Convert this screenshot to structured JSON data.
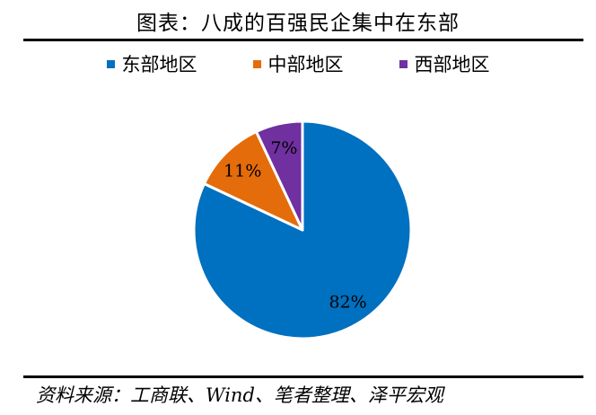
{
  "chart_data": {
    "type": "pie",
    "title": "图表：八成的百强民企集中在东部",
    "categories": [
      "东部地区",
      "中部地区",
      "西部地区"
    ],
    "values": [
      82,
      11,
      7
    ],
    "labels": [
      "82%",
      "11%",
      "7%"
    ],
    "colors": [
      "#0070C0",
      "#E46C0A",
      "#7030A0"
    ],
    "legend": "top",
    "start_angle": "top, clockwise"
  },
  "source": "资料来源：工商联、Wind、笔者整理、泽平宏观"
}
